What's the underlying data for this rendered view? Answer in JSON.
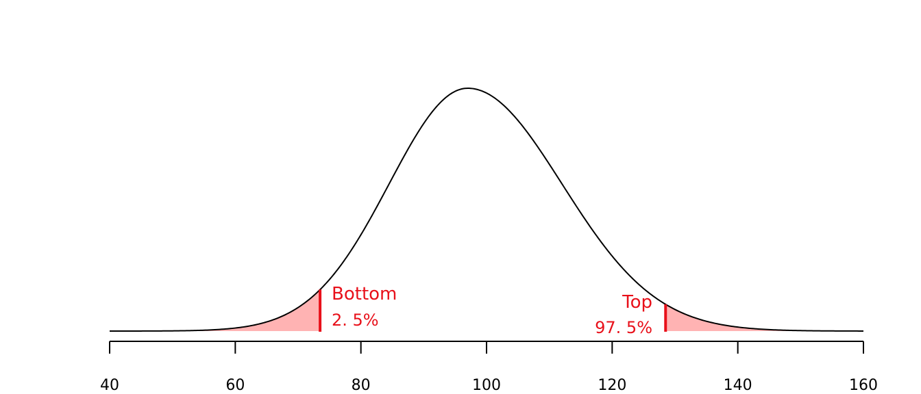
{
  "chart_data": {
    "type": "area",
    "distribution": "skewed normal density (mode ~97, right-skewed)",
    "xlim": [
      40,
      160
    ],
    "x_ticks": [
      40,
      60,
      80,
      100,
      120,
      140,
      160
    ],
    "x_tick_labels": [
      "40",
      "60",
      "80",
      "100",
      "120",
      "140",
      "160"
    ],
    "mode": 97,
    "spread_left": 12.5,
    "spread_right": 15,
    "lower_cutoff": 73.5,
    "upper_cutoff": 128.5,
    "curve_color": "#000000",
    "shade_color": "#ffb3b3",
    "cutoff_color": "#e8101a",
    "annotations": {
      "bottom_label": "Bottom",
      "bottom_pct": "2. 5%",
      "top_label": "Top",
      "top_pct": "97. 5%"
    },
    "y_axis_shown": false,
    "grid": false
  }
}
